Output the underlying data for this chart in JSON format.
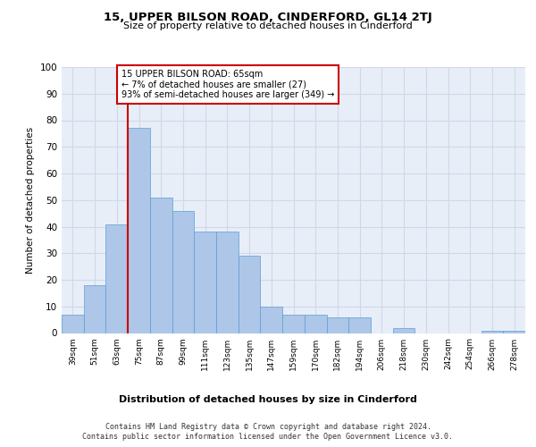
{
  "title": "15, UPPER BILSON ROAD, CINDERFORD, GL14 2TJ",
  "subtitle": "Size of property relative to detached houses in Cinderford",
  "xlabel": "Distribution of detached houses by size in Cinderford",
  "ylabel": "Number of detached properties",
  "categories": [
    "39sqm",
    "51sqm",
    "63sqm",
    "75sqm",
    "87sqm",
    "99sqm",
    "111sqm",
    "123sqm",
    "135sqm",
    "147sqm",
    "159sqm",
    "170sqm",
    "182sqm",
    "194sqm",
    "206sqm",
    "218sqm",
    "230sqm",
    "242sqm",
    "254sqm",
    "266sqm",
    "278sqm"
  ],
  "values": [
    7,
    18,
    41,
    77,
    51,
    46,
    38,
    38,
    29,
    10,
    7,
    7,
    6,
    6,
    0,
    2,
    0,
    0,
    0,
    1,
    1
  ],
  "bar_color": "#aec6e8",
  "bar_edge_color": "#5a9fd4",
  "grid_color": "#d0d8e8",
  "background_color": "#e8eef8",
  "vline_x_idx": 2,
  "vline_color": "#cc0000",
  "annotation_text": "15 UPPER BILSON ROAD: 65sqm\n← 7% of detached houses are smaller (27)\n93% of semi-detached houses are larger (349) →",
  "annotation_box_color": "#ffffff",
  "annotation_box_edge_color": "#cc0000",
  "footer_line1": "Contains HM Land Registry data © Crown copyright and database right 2024.",
  "footer_line2": "Contains public sector information licensed under the Open Government Licence v3.0.",
  "ylim": [
    0,
    100
  ],
  "yticks": [
    0,
    10,
    20,
    30,
    40,
    50,
    60,
    70,
    80,
    90,
    100
  ]
}
